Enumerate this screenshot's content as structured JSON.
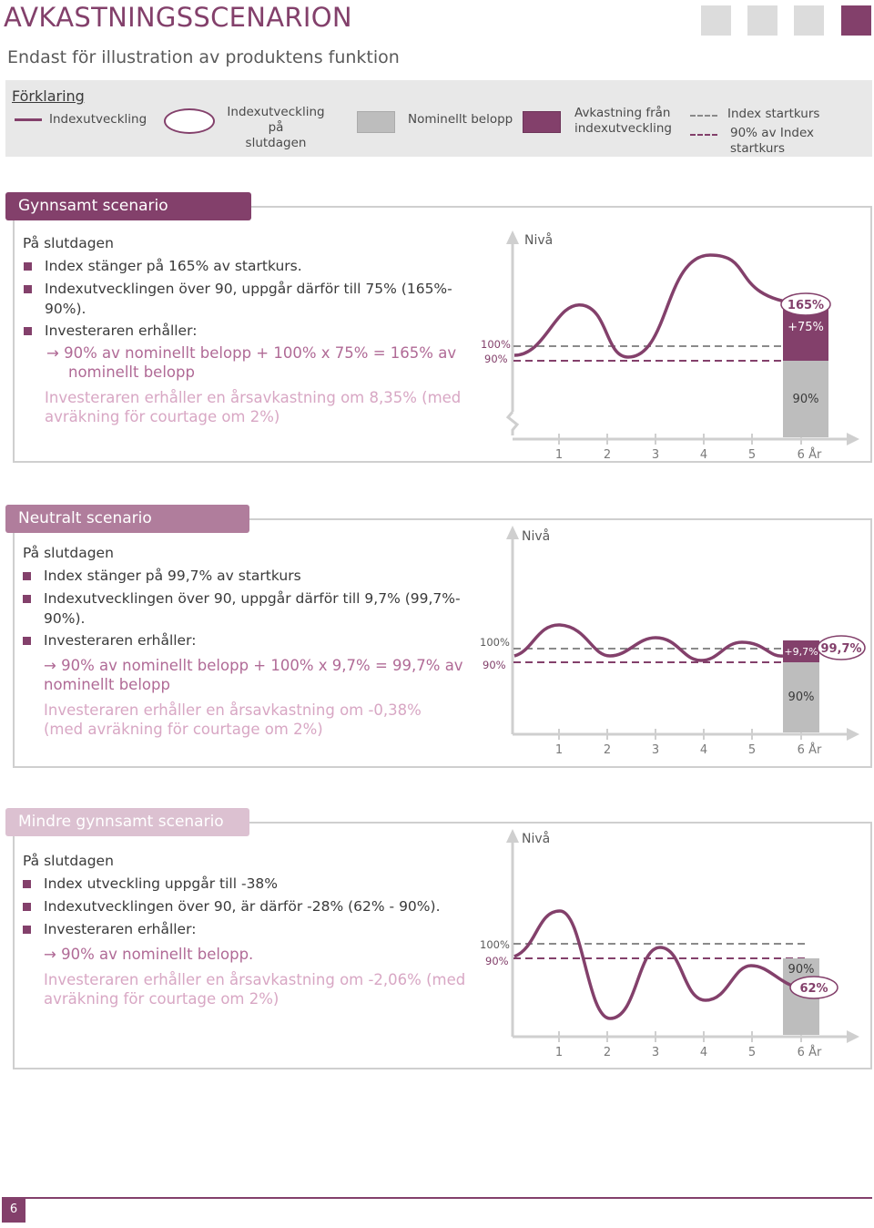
{
  "header": {
    "title": "AVKASTNINGSSCENARION",
    "subtitle": "Endast för illustration av produktens funktion",
    "squares": [
      "#dcdcdc",
      "#dcdcdc",
      "#dcdcdc",
      "#83406b"
    ]
  },
  "legend": {
    "title": "Förklaring",
    "items": {
      "index": "Indexutveckling",
      "end_line1": "Indexutveckling på",
      "end_line2": "slutdagen",
      "nominal": "Nominellt belopp",
      "return_line1": "Avkastning från",
      "return_line2": "indexutveckling",
      "start": "Index startkurs",
      "ninety": "90% av Index startkurs"
    }
  },
  "colors": {
    "accent": "#83406b",
    "tab_favorable": "#83406b",
    "tab_neutral": "#b07d9c",
    "tab_less": "#dcc1d1",
    "gray_bar": "#bdbdbd"
  },
  "scenarios": [
    {
      "tab": "Gynnsamt scenario",
      "heading": "På slutdagen",
      "b1": "Index stänger på 165% av startkurs.",
      "b2_1": "Indexutvecklingen över 90, uppgår därför till 75% (165%-",
      "b2_2": "90%).",
      "b3": "Investeraren erhåller:",
      "arrow1": "→ 90% av nominellt belopp + 100% x 75% = 165% av",
      "arrow2": "nominellt belopp",
      "pink1": "Investeraren erhåller en årsavkastning om 8,35% (med",
      "pink2": "avräkning för courtage om 2%)"
    },
    {
      "tab": "Neutralt scenario",
      "heading": "På slutdagen",
      "b1": "Index stänger på 99,7% av startkurs",
      "b2_1": "Indexutvecklingen över 90, uppgår därför till 9,7% (99,7%-",
      "b2_2": "90%).",
      "b3": "Investeraren erhåller:",
      "arrow1": "→ 90% av nominellt belopp + 100% x 9,7% = 99,7% av",
      "arrow2": "nominellt belopp",
      "pink1": "Investeraren erhåller en årsavkastning om -0,38%",
      "pink2": "(med avräkning för courtage om 2%)"
    },
    {
      "tab": "Mindre gynnsamt scenario",
      "heading": "På slutdagen",
      "b1": "Index utveckling uppgår till -38%",
      "b2_1": "Indexutvecklingen över 90, är därför -28% (62% - 90%).",
      "b3": "Investeraren erhåller:",
      "arrow1": "→ 90% av nominellt belopp.",
      "pink1": "Investeraren erhåller en årsavkastning om -2,06% (med",
      "pink2": "avräkning för courtage om 2%)"
    }
  ],
  "chart_data": [
    {
      "type": "line",
      "ylabel": "Nivå",
      "x_ticks": [
        "1",
        "2",
        "3",
        "4",
        "5",
        "6 År"
      ],
      "ref_lines": [
        "100%",
        "90%"
      ],
      "bar_labels": {
        "top": "165%",
        "return": "+75%",
        "nominal": "90%"
      },
      "end_value": 165,
      "return_value": 75,
      "nominal_value": 90
    },
    {
      "type": "line",
      "ylabel": "Nivå",
      "x_ticks": [
        "1",
        "2",
        "3",
        "4",
        "5",
        "6 År"
      ],
      "ref_lines": [
        "100%",
        "90%"
      ],
      "bar_labels": {
        "top": "99,7%",
        "return": "+9,7%",
        "nominal": "90%"
      },
      "end_value": 99.7,
      "return_value": 9.7,
      "nominal_value": 90
    },
    {
      "type": "line",
      "ylabel": "Nivå",
      "x_ticks": [
        "1",
        "2",
        "3",
        "4",
        "5",
        "6 År"
      ],
      "ref_lines": [
        "100%",
        "90%"
      ],
      "bar_labels": {
        "top": "62%",
        "nominal": "90%"
      },
      "end_value": 62,
      "nominal_value": 90
    }
  ],
  "footer": {
    "page": "6"
  }
}
